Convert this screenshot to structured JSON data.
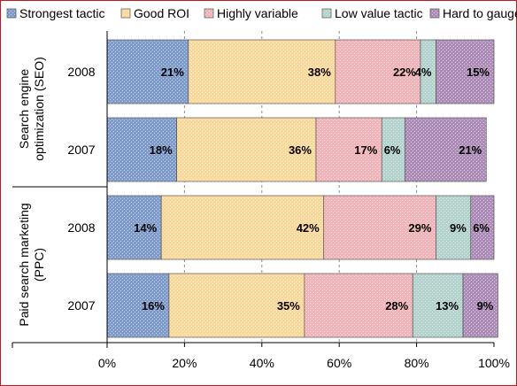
{
  "chart_data": {
    "type": "bar",
    "orientation": "horizontal",
    "stacked": true,
    "percent": true,
    "series": [
      {
        "name": "Strongest tactic",
        "color": "#7f9ccc",
        "pattern": "dots",
        "values": [
          21,
          18,
          14,
          16
        ]
      },
      {
        "name": "Good ROI",
        "color": "#fbd89c",
        "pattern": "dots",
        "values": [
          38,
          36,
          42,
          35
        ]
      },
      {
        "name": "Highly variable",
        "color": "#f2b4b8",
        "pattern": "dots",
        "values": [
          22,
          17,
          29,
          28
        ]
      },
      {
        "name": "Low value tactic",
        "color": "#b3d2cd",
        "pattern": "dots",
        "values": [
          4,
          6,
          9,
          13
        ]
      },
      {
        "name": "Hard to gauge",
        "color": "#ad8db8",
        "pattern": "dots",
        "values": [
          15,
          21,
          6,
          9
        ]
      }
    ],
    "categories": [
      {
        "group": "Search engine optimization (SEO)",
        "year": "2008"
      },
      {
        "group": "Search engine optimization (SEO)",
        "year": "2007"
      },
      {
        "group": "Paid search marketing (PPC)",
        "year": "2008"
      },
      {
        "group": "Paid search marketing (PPC)",
        "year": "2007"
      }
    ],
    "groups": [
      {
        "lines": [
          "Search engine",
          "optimization (SEO)"
        ]
      },
      {
        "lines": [
          "Paid search marketing",
          "(PPC)"
        ]
      }
    ],
    "xticks": [
      "0%",
      "20%",
      "40%",
      "60%",
      "80%",
      "100%"
    ],
    "xlim": [
      0,
      100
    ],
    "grid": "vertical-dashed",
    "legend": "top"
  }
}
